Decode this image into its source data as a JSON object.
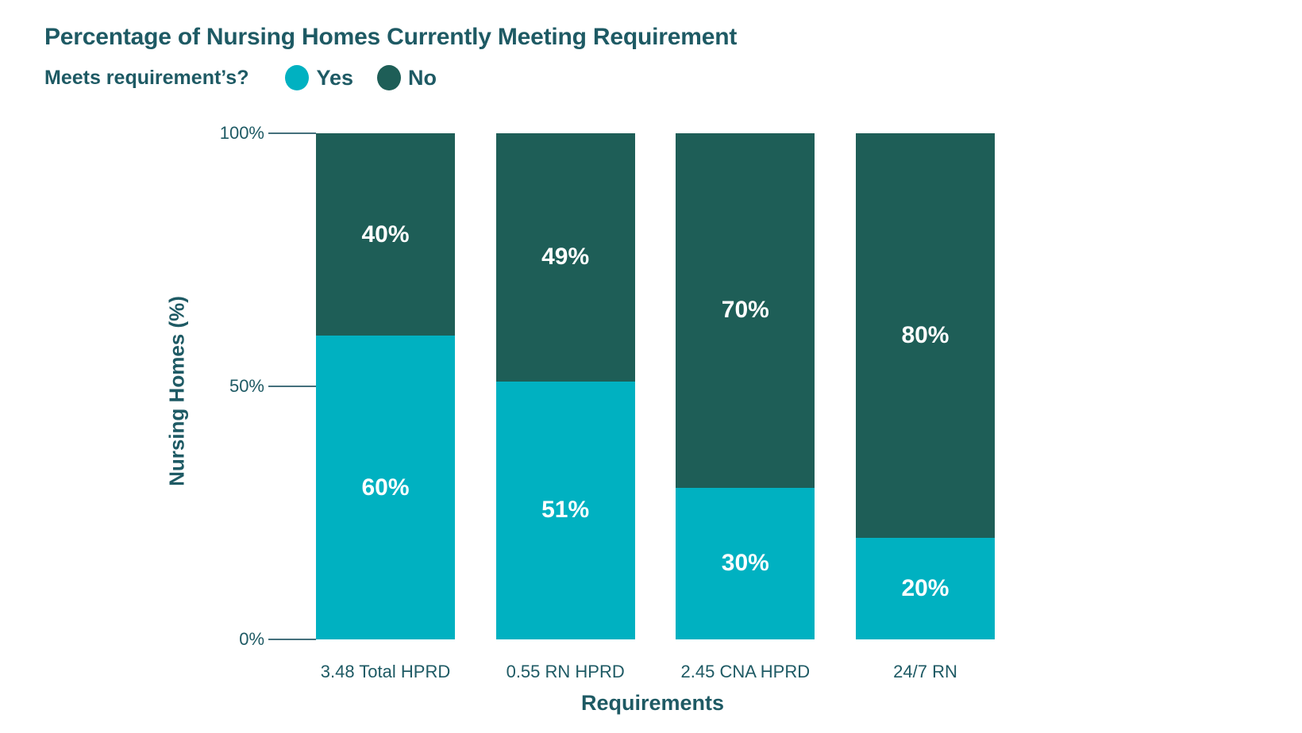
{
  "colors": {
    "yes": "#00B1C1",
    "no": "#1E5E57",
    "text": "#1E5A64",
    "tick_line": "#44707C",
    "background": "#FFFFFF",
    "bar_label_text": "#FFFFFF"
  },
  "chart_data": {
    "type": "bar",
    "stacked": true,
    "title": "Percentage of Nursing Homes Currently Meeting Requirement",
    "legend_title": "Meets requirement’s?",
    "legend_position": "top-left",
    "categories": [
      "3.48 Total HPRD",
      "0.55 RN HPRD",
      "2.45 CNA HPRD",
      "24/7 RN"
    ],
    "series": [
      {
        "name": "Yes",
        "color": "#00B1C1",
        "values": [
          60,
          51,
          30,
          20
        ],
        "labels": [
          "60%",
          "51%",
          "30%",
          "20%"
        ]
      },
      {
        "name": "No",
        "color": "#1E5E57",
        "values": [
          40,
          49,
          70,
          80
        ],
        "labels": [
          "40%",
          "49%",
          "70%",
          "80%"
        ]
      }
    ],
    "xlabel": "Requirements",
    "ylabel": "Nursing Homes (%)",
    "ylim": [
      0,
      100
    ],
    "yticks": [
      {
        "value": 100,
        "label": "100%"
      },
      {
        "value": 50,
        "label": "50%"
      },
      {
        "value": 0,
        "label": "0%"
      }
    ],
    "grid": false
  }
}
